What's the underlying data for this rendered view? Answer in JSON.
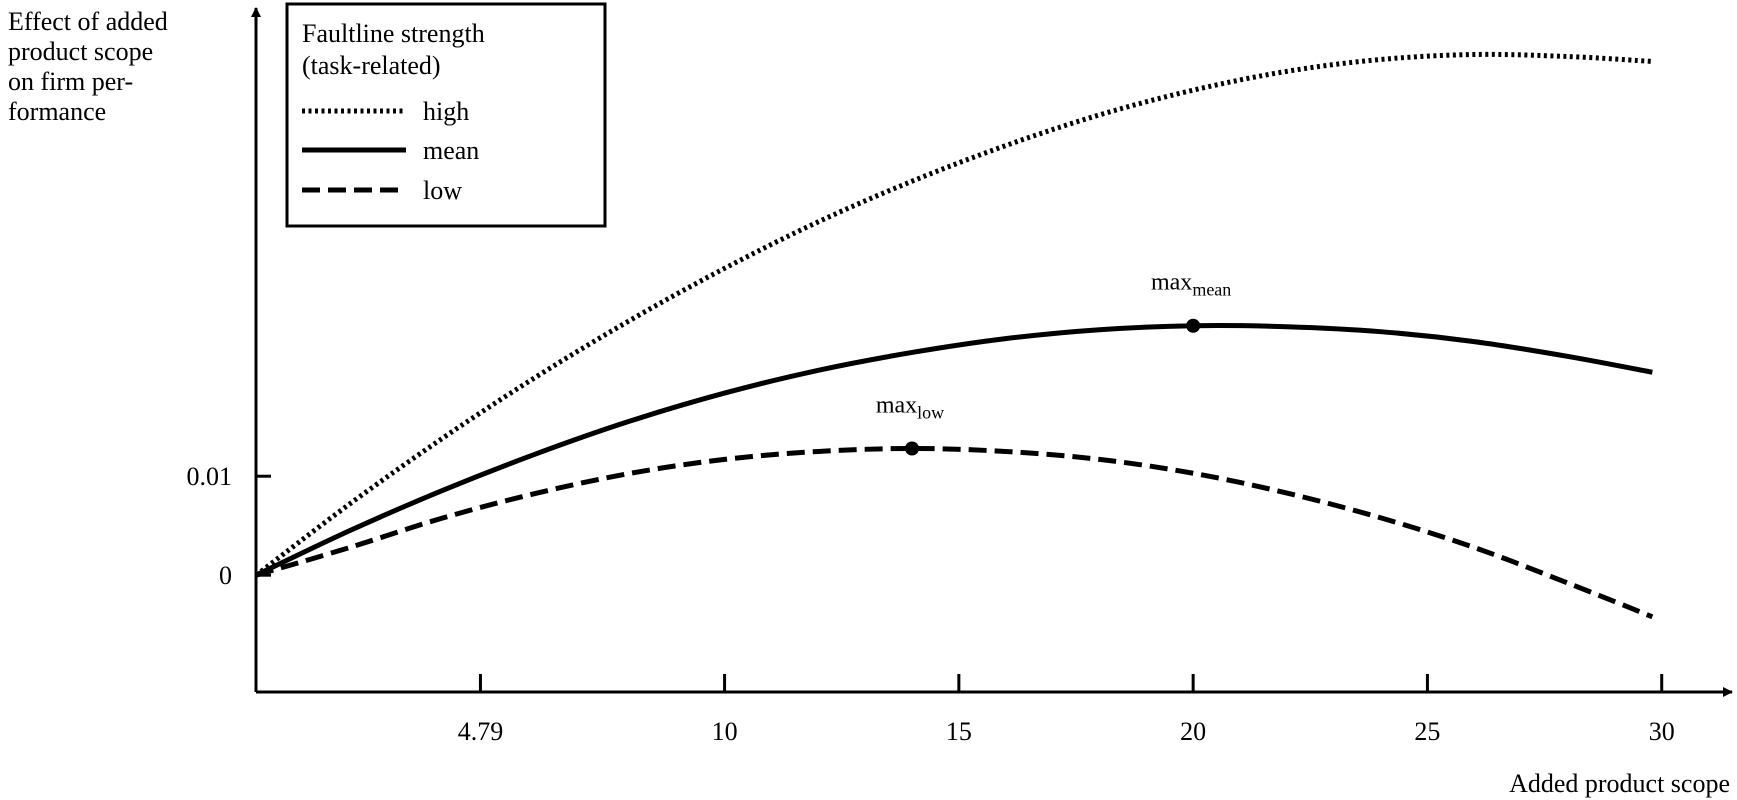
{
  "chart_data": {
    "type": "line",
    "ylabel_lines": [
      "Effect of added",
      "product scope",
      "on firm per-",
      "formance"
    ],
    "xlabel": "Added product scope",
    "x_ticks": [
      4.79,
      10,
      15,
      20,
      25,
      30
    ],
    "x_tick_labels": [
      "4.79",
      "10",
      "15",
      "20",
      "25",
      "30"
    ],
    "y_ticks": [
      0,
      0.01
    ],
    "y_tick_labels": [
      "0",
      "0.01"
    ],
    "xlim": [
      0,
      31.5
    ],
    "ylim": [
      -0.0118,
      0.0573
    ],
    "legend": {
      "title_lines": [
        "Faultline strength",
        "(task-related)"
      ],
      "placement": "top-left"
    },
    "series": [
      {
        "name": "high",
        "style": "dotted",
        "x": [
          0,
          2,
          4,
          6,
          8,
          10,
          12,
          14,
          16,
          18,
          20,
          22,
          24,
          26,
          28,
          29.8
        ],
        "y": [
          0,
          0.0072,
          0.0139,
          0.0201,
          0.0258,
          0.031,
          0.0357,
          0.0398,
          0.0434,
          0.0465,
          0.049,
          0.0509,
          0.0521,
          0.0526,
          0.0524,
          0.0519
        ]
      },
      {
        "name": "mean",
        "style": "solid",
        "x": [
          0,
          2,
          4,
          6,
          8,
          10,
          12,
          14,
          16,
          18,
          20,
          22,
          24,
          26,
          28,
          29.8
        ],
        "y": [
          0,
          0.0045,
          0.0086,
          0.0123,
          0.0156,
          0.0184,
          0.0207,
          0.0225,
          0.0239,
          0.0248,
          0.0252,
          0.0251,
          0.0246,
          0.0236,
          0.0221,
          0.0205
        ]
      },
      {
        "name": "low",
        "style": "dashed",
        "x": [
          0,
          2,
          4,
          6,
          8,
          10,
          12,
          14,
          16,
          18,
          20,
          22,
          24,
          26,
          28,
          29.8
        ],
        "y": [
          0,
          0.0028,
          0.0058,
          0.0083,
          0.0103,
          0.0117,
          0.0125,
          0.0128,
          0.0125,
          0.0117,
          0.0103,
          0.0083,
          0.0058,
          0.0028,
          -0.0008,
          -0.0042
        ]
      }
    ],
    "annotations": [
      {
        "text": "max",
        "subscript": "mean",
        "x": 20,
        "y": 0.0252
      },
      {
        "text": "max",
        "subscript": "low",
        "x": 14,
        "y": 0.0128
      }
    ]
  }
}
